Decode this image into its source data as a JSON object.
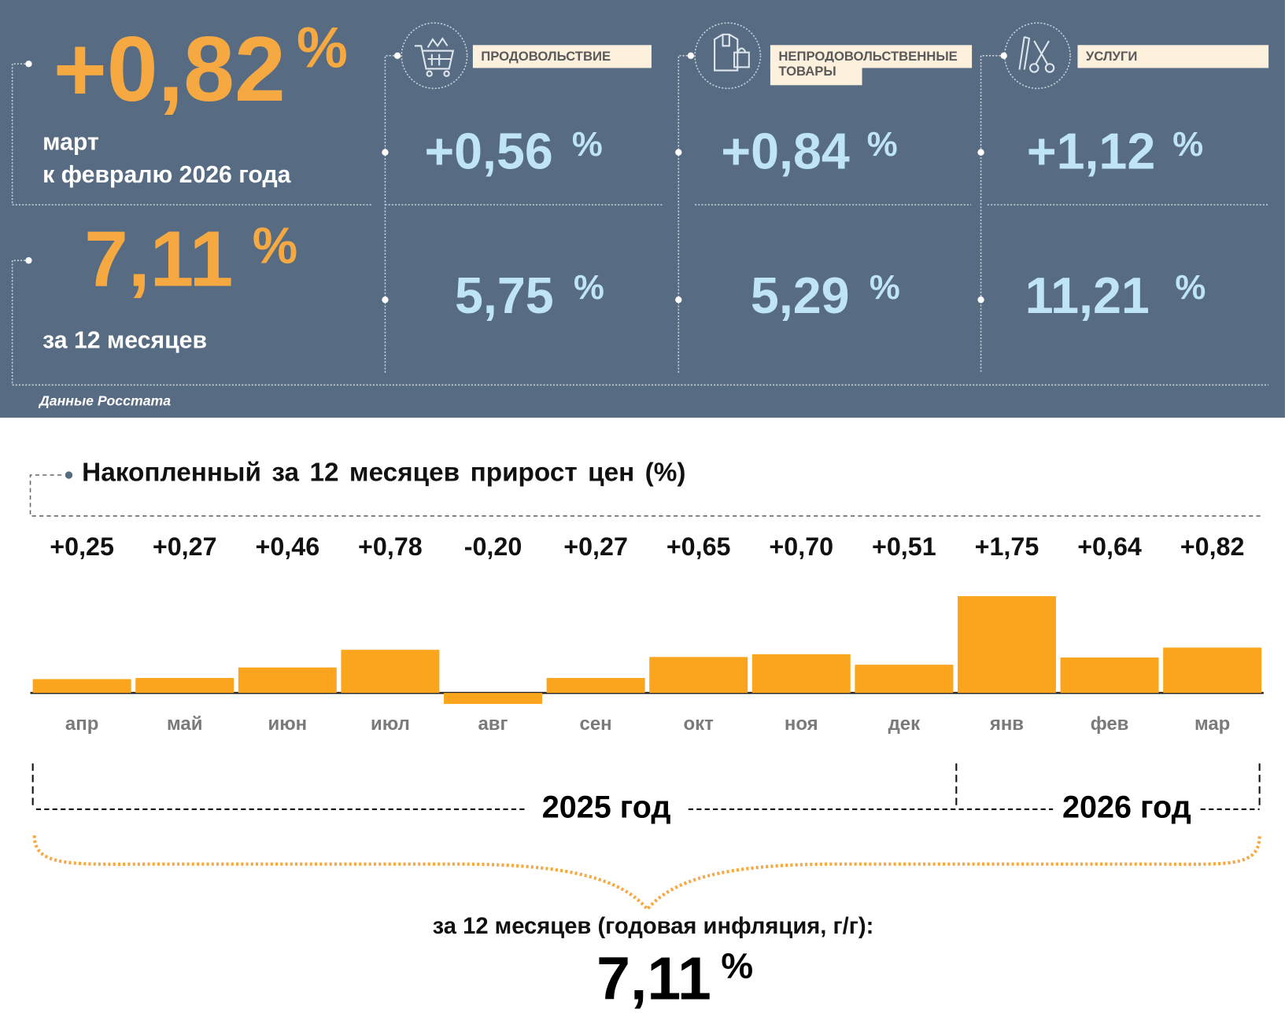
{
  "header": {
    "monthly_value": "+0,82",
    "percent": "%",
    "monthly_caption_1": "март",
    "monthly_caption_2": "к февралю 2026 года",
    "annual_value": "7,11",
    "annual_caption": "за 12 месяцев",
    "source": "Данные Росстата"
  },
  "categories": [
    {
      "icon": "shopping-cart-icon",
      "label": "ПРОДОВОЛЬСТВИЕ",
      "monthly": "+0,56",
      "annual": "5,75"
    },
    {
      "icon": "clothing-bag-icon",
      "label_1": "НЕПРОДОВОЛЬСТВЕННЫЕ",
      "label_2": "ТОВАРЫ",
      "monthly": "+0,84",
      "annual": "5,29"
    },
    {
      "icon": "comb-scissors-icon",
      "label": "УСЛУГИ",
      "monthly": "+1,12",
      "annual": "11,21"
    }
  ],
  "colors": {
    "panel": "#576c82",
    "accent": "#f7a941",
    "value_blue": "#bfe4f6",
    "bar": "#fba51f"
  },
  "chart_data": {
    "type": "bar",
    "title": "Накопленный за 12 месяцев прирост цен (%)",
    "categories": [
      "апр",
      "май",
      "июн",
      "июл",
      "авг",
      "сен",
      "окт",
      "ноя",
      "дек",
      "янв",
      "фев",
      "мар"
    ],
    "values": [
      0.25,
      0.27,
      0.46,
      0.78,
      -0.2,
      0.27,
      0.65,
      0.7,
      0.51,
      1.75,
      0.64,
      0.82
    ],
    "value_labels": [
      "+0,25",
      "+0,27",
      "+0,46",
      "+0,78",
      "-0,20",
      "+0,27",
      "+0,65",
      "+0,70",
      "+0,51",
      "+1,75",
      "+0,64",
      "+0,82"
    ],
    "years": [
      "2025 год",
      "2026 год"
    ],
    "summary_caption": "за 12 месяцев (годовая инфляция, г/г):",
    "summary_value": "7,11",
    "summary_percent": "%"
  }
}
